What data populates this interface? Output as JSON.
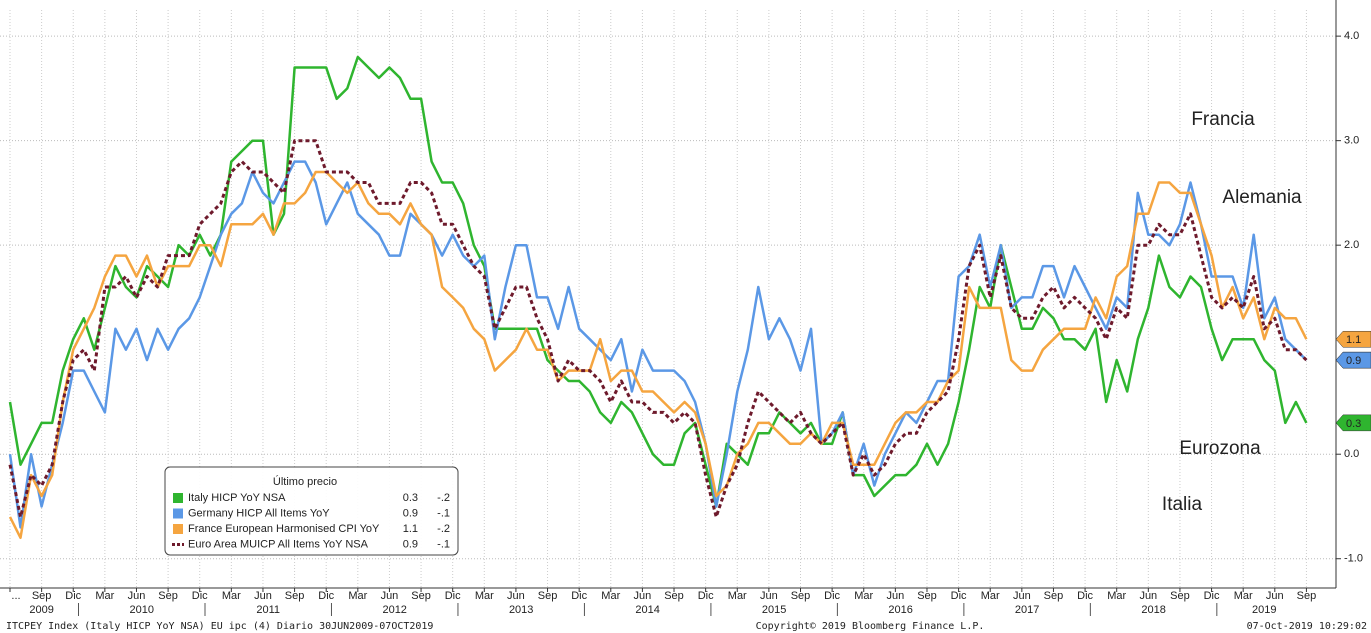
{
  "chart_data": {
    "type": "line",
    "x": [
      "2009-06",
      "2009-07",
      "2009-08",
      "2009-09",
      "2009-10",
      "2009-11",
      "2009-12",
      "2010-01",
      "2010-02",
      "2010-03",
      "2010-04",
      "2010-05",
      "2010-06",
      "2010-07",
      "2010-08",
      "2010-09",
      "2010-10",
      "2010-11",
      "2010-12",
      "2011-01",
      "2011-02",
      "2011-03",
      "2011-04",
      "2011-05",
      "2011-06",
      "2011-07",
      "2011-08",
      "2011-09",
      "2011-10",
      "2011-11",
      "2011-12",
      "2012-01",
      "2012-02",
      "2012-03",
      "2012-04",
      "2012-05",
      "2012-06",
      "2012-07",
      "2012-08",
      "2012-09",
      "2012-10",
      "2012-11",
      "2012-12",
      "2013-01",
      "2013-02",
      "2013-03",
      "2013-04",
      "2013-05",
      "2013-06",
      "2013-07",
      "2013-08",
      "2013-09",
      "2013-10",
      "2013-11",
      "2013-12",
      "2014-01",
      "2014-02",
      "2014-03",
      "2014-04",
      "2014-05",
      "2014-06",
      "2014-07",
      "2014-08",
      "2014-09",
      "2014-10",
      "2014-11",
      "2014-12",
      "2015-01",
      "2015-02",
      "2015-03",
      "2015-04",
      "2015-05",
      "2015-06",
      "2015-07",
      "2015-08",
      "2015-09",
      "2015-10",
      "2015-11",
      "2015-12",
      "2016-01",
      "2016-02",
      "2016-03",
      "2016-04",
      "2016-05",
      "2016-06",
      "2016-07",
      "2016-08",
      "2016-09",
      "2016-10",
      "2016-11",
      "2016-12",
      "2017-01",
      "2017-02",
      "2017-03",
      "2017-04",
      "2017-05",
      "2017-06",
      "2017-07",
      "2017-08",
      "2017-09",
      "2017-10",
      "2017-11",
      "2017-12",
      "2018-01",
      "2018-02",
      "2018-03",
      "2018-04",
      "2018-05",
      "2018-06",
      "2018-07",
      "2018-08",
      "2018-09",
      "2018-10",
      "2018-11",
      "2018-12",
      "2019-01",
      "2019-02",
      "2019-03",
      "2019-04",
      "2019-05",
      "2019-06",
      "2019-07",
      "2019-08",
      "2019-09"
    ],
    "xticks": [
      {
        "value": "2009-06",
        "label": "..."
      },
      {
        "value": "2009-09",
        "label": "Sep"
      },
      {
        "value": "2009-12",
        "label": "Dic"
      },
      {
        "value": "2010-03",
        "label": "Mar"
      },
      {
        "value": "2010-06",
        "label": "Jun"
      },
      {
        "value": "2010-09",
        "label": "Sep"
      },
      {
        "value": "2010-12",
        "label": "Dic"
      },
      {
        "value": "2011-03",
        "label": "Mar"
      },
      {
        "value": "2011-06",
        "label": "Jun"
      },
      {
        "value": "2011-09",
        "label": "Sep"
      },
      {
        "value": "2011-12",
        "label": "Dic"
      },
      {
        "value": "2012-03",
        "label": "Mar"
      },
      {
        "value": "2012-06",
        "label": "Jun"
      },
      {
        "value": "2012-09",
        "label": "Sep"
      },
      {
        "value": "2012-12",
        "label": "Dic"
      },
      {
        "value": "2013-03",
        "label": "Mar"
      },
      {
        "value": "2013-06",
        "label": "Jun"
      },
      {
        "value": "2013-09",
        "label": "Sep"
      },
      {
        "value": "2013-12",
        "label": "Dic"
      },
      {
        "value": "2014-03",
        "label": "Mar"
      },
      {
        "value": "2014-06",
        "label": "Jun"
      },
      {
        "value": "2014-09",
        "label": "Sep"
      },
      {
        "value": "2014-12",
        "label": "Dic"
      },
      {
        "value": "2015-03",
        "label": "Mar"
      },
      {
        "value": "2015-06",
        "label": "Jun"
      },
      {
        "value": "2015-09",
        "label": "Sep"
      },
      {
        "value": "2015-12",
        "label": "Dic"
      },
      {
        "value": "2016-03",
        "label": "Mar"
      },
      {
        "value": "2016-06",
        "label": "Jun"
      },
      {
        "value": "2016-09",
        "label": "Sep"
      },
      {
        "value": "2016-12",
        "label": "Dic"
      },
      {
        "value": "2017-03",
        "label": "Mar"
      },
      {
        "value": "2017-06",
        "label": "Jun"
      },
      {
        "value": "2017-09",
        "label": "Sep"
      },
      {
        "value": "2017-12",
        "label": "Dic"
      },
      {
        "value": "2018-03",
        "label": "Mar"
      },
      {
        "value": "2018-06",
        "label": "Jun"
      },
      {
        "value": "2018-09",
        "label": "Sep"
      },
      {
        "value": "2018-12",
        "label": "Dic"
      },
      {
        "value": "2019-03",
        "label": "Mar"
      },
      {
        "value": "2019-06",
        "label": "Jun"
      },
      {
        "value": "2019-09",
        "label": "Sep"
      }
    ],
    "year_ticks": [
      2009,
      2010,
      2011,
      2012,
      2013,
      2014,
      2015,
      2016,
      2017,
      2018,
      2019
    ],
    "ylim": [
      -1.28,
      4.25
    ],
    "yticks": [
      {
        "value": -1,
        "label": "-1.0"
      },
      {
        "value": 0,
        "label": "0.0"
      },
      {
        "value": 2,
        "label": "2.0"
      },
      {
        "value": 3,
        "label": "3.0"
      },
      {
        "value": 4,
        "label": "4.0"
      }
    ],
    "grid": true,
    "legend_title": "Último precio",
    "series": [
      {
        "name": "Italy HICP YoY NSA",
        "color": "#2fb52f",
        "dash": false,
        "legend_last": 0.3,
        "legend_change": {
          "value": -0.2,
          "label": "-.2"
        },
        "values": [
          0.5,
          -0.1,
          0.1,
          0.3,
          0.3,
          0.8,
          1.1,
          1.3,
          1.0,
          1.4,
          1.8,
          1.6,
          1.5,
          1.8,
          1.7,
          1.6,
          2.0,
          1.9,
          2.1,
          1.9,
          2.1,
          2.8,
          2.9,
          3.0,
          3.0,
          2.1,
          2.3,
          3.7,
          3.7,
          3.7,
          3.7,
          3.4,
          3.5,
          3.8,
          3.7,
          3.6,
          3.7,
          3.6,
          3.4,
          3.4,
          2.8,
          2.6,
          2.6,
          2.4,
          2.0,
          1.8,
          1.2,
          1.2,
          1.2,
          1.2,
          1.2,
          0.9,
          0.8,
          0.7,
          0.7,
          0.6,
          0.4,
          0.3,
          0.5,
          0.4,
          0.2,
          0.0,
          -0.1,
          -0.1,
          0.2,
          0.3,
          -0.1,
          -0.5,
          0.1,
          0.0,
          -0.1,
          0.2,
          0.2,
          0.4,
          0.3,
          0.2,
          0.3,
          0.1,
          0.1,
          0.4,
          -0.2,
          -0.2,
          -0.4,
          -0.3,
          -0.2,
          -0.2,
          -0.1,
          0.1,
          -0.1,
          0.1,
          0.5,
          1.0,
          1.6,
          1.4,
          2.0,
          1.6,
          1.2,
          1.2,
          1.4,
          1.3,
          1.1,
          1.1,
          1.0,
          1.2,
          0.5,
          0.9,
          0.6,
          1.1,
          1.4,
          1.9,
          1.6,
          1.5,
          1.7,
          1.6,
          1.2,
          0.9,
          1.1,
          1.1,
          1.1,
          0.9,
          0.8,
          0.3,
          0.5,
          0.3
        ]
      },
      {
        "name": "Germany HICP All Items YoY",
        "color": "#5b98e6",
        "dash": false,
        "legend_last": 0.9,
        "legend_change": {
          "value": -0.1,
          "label": "-.1"
        },
        "values": [
          0.0,
          -0.7,
          0.0,
          -0.5,
          -0.1,
          0.3,
          0.8,
          0.8,
          0.6,
          0.4,
          1.2,
          1.0,
          1.2,
          0.9,
          1.2,
          1.0,
          1.2,
          1.3,
          1.5,
          1.8,
          2.1,
          2.3,
          2.4,
          2.7,
          2.5,
          2.4,
          2.6,
          2.8,
          2.8,
          2.6,
          2.2,
          2.4,
          2.6,
          2.3,
          2.2,
          2.1,
          1.9,
          1.9,
          2.3,
          2.2,
          2.1,
          1.9,
          2.1,
          1.9,
          1.8,
          1.9,
          1.1,
          1.6,
          2.0,
          2.0,
          1.5,
          1.5,
          1.2,
          1.6,
          1.2,
          1.1,
          1.0,
          0.9,
          1.1,
          0.6,
          1.0,
          0.8,
          0.8,
          0.8,
          0.7,
          0.5,
          0.1,
          -0.5,
          0.0,
          0.6,
          1.0,
          1.6,
          1.1,
          1.3,
          1.1,
          0.8,
          1.2,
          0.1,
          0.2,
          0.4,
          -0.2,
          0.1,
          -0.3,
          0.0,
          0.2,
          0.4,
          0.3,
          0.5,
          0.7,
          0.7,
          1.7,
          1.8,
          2.1,
          1.6,
          2.0,
          1.4,
          1.5,
          1.5,
          1.8,
          1.8,
          1.5,
          1.8,
          1.6,
          1.4,
          1.2,
          1.5,
          1.4,
          2.5,
          2.1,
          2.1,
          2.0,
          2.2,
          2.6,
          2.2,
          1.7,
          1.7,
          1.7,
          1.4,
          2.1,
          1.3,
          1.5,
          1.1,
          1.0,
          0.9
        ]
      },
      {
        "name": "France European Harmonised CPI YoY",
        "color": "#f5a540",
        "dash": false,
        "legend_last": 1.1,
        "legend_change": {
          "value": -0.2,
          "label": "-.2"
        },
        "values": [
          -0.6,
          -0.8,
          -0.2,
          -0.4,
          -0.2,
          0.5,
          1.0,
          1.2,
          1.4,
          1.7,
          1.9,
          1.9,
          1.7,
          1.9,
          1.6,
          1.8,
          1.8,
          1.8,
          2.0,
          2.0,
          1.8,
          2.2,
          2.2,
          2.2,
          2.3,
          2.1,
          2.4,
          2.4,
          2.5,
          2.7,
          2.7,
          2.6,
          2.5,
          2.6,
          2.4,
          2.3,
          2.3,
          2.2,
          2.4,
          2.2,
          2.1,
          1.6,
          1.5,
          1.4,
          1.2,
          1.1,
          0.8,
          0.9,
          1.0,
          1.2,
          1.0,
          1.0,
          0.7,
          0.8,
          0.8,
          0.8,
          1.1,
          0.7,
          0.8,
          0.8,
          0.6,
          0.6,
          0.5,
          0.4,
          0.5,
          0.4,
          0.1,
          -0.4,
          -0.3,
          0.0,
          0.1,
          0.3,
          0.3,
          0.2,
          0.1,
          0.1,
          0.2,
          0.1,
          0.3,
          0.3,
          -0.1,
          -0.1,
          -0.1,
          0.1,
          0.3,
          0.4,
          0.4,
          0.5,
          0.5,
          0.7,
          0.8,
          1.6,
          1.4,
          1.4,
          1.4,
          0.9,
          0.8,
          0.8,
          1.0,
          1.1,
          1.2,
          1.2,
          1.2,
          1.5,
          1.3,
          1.7,
          1.8,
          2.3,
          2.3,
          2.6,
          2.6,
          2.5,
          2.5,
          2.2,
          1.9,
          1.4,
          1.6,
          1.3,
          1.5,
          1.1,
          1.4,
          1.3,
          1.3,
          1.1
        ]
      },
      {
        "name": "Euro Area MUICP All Items YoY NSA",
        "color": "#6e1a2c",
        "dash": true,
        "legend_last": 0.9,
        "legend_change": {
          "value": -0.1,
          "label": "-.1"
        },
        "values": [
          -0.1,
          -0.6,
          -0.2,
          -0.3,
          -0.1,
          0.5,
          0.9,
          1.0,
          0.8,
          1.6,
          1.6,
          1.7,
          1.5,
          1.7,
          1.6,
          1.9,
          1.9,
          1.9,
          2.2,
          2.3,
          2.4,
          2.7,
          2.8,
          2.7,
          2.7,
          2.6,
          2.5,
          3.0,
          3.0,
          3.0,
          2.7,
          2.7,
          2.7,
          2.6,
          2.6,
          2.4,
          2.4,
          2.4,
          2.6,
          2.6,
          2.5,
          2.2,
          2.2,
          2.0,
          1.8,
          1.7,
          1.2,
          1.4,
          1.6,
          1.6,
          1.3,
          1.1,
          0.7,
          0.9,
          0.8,
          0.8,
          0.7,
          0.5,
          0.7,
          0.5,
          0.5,
          0.4,
          0.4,
          0.3,
          0.4,
          0.3,
          -0.2,
          -0.6,
          -0.3,
          -0.1,
          0.3,
          0.6,
          0.5,
          0.4,
          0.3,
          0.4,
          0.2,
          0.1,
          0.2,
          0.3,
          -0.2,
          0.0,
          -0.2,
          -0.1,
          0.1,
          0.2,
          0.2,
          0.4,
          0.5,
          0.6,
          1.1,
          1.8,
          2.0,
          1.5,
          1.9,
          1.4,
          1.3,
          1.3,
          1.5,
          1.6,
          1.4,
          1.5,
          1.4,
          1.3,
          1.1,
          1.4,
          1.3,
          2.0,
          2.0,
          2.2,
          2.1,
          2.1,
          2.3,
          1.9,
          1.5,
          1.4,
          1.5,
          1.4,
          1.7,
          1.2,
          1.3,
          1.0,
          1.0,
          0.9
        ]
      }
    ],
    "annotations": [
      {
        "text": "Francia",
        "color": "#f39b3a"
      },
      {
        "text": "Alemania",
        "color": "#5b9be0"
      },
      {
        "text": "Eurozona",
        "color": "#c0392b"
      },
      {
        "text": "Italia",
        "color": "#35b835"
      }
    ]
  },
  "footer": {
    "left": "ITCPEY Index (Italy HICP YoY NSA) EU ipc (4)  Diario 30JUN2009-07OCT2019",
    "center": "Copyright© 2019 Bloomberg Finance L.P.",
    "right": "07-Oct-2019 10:29:02"
  }
}
